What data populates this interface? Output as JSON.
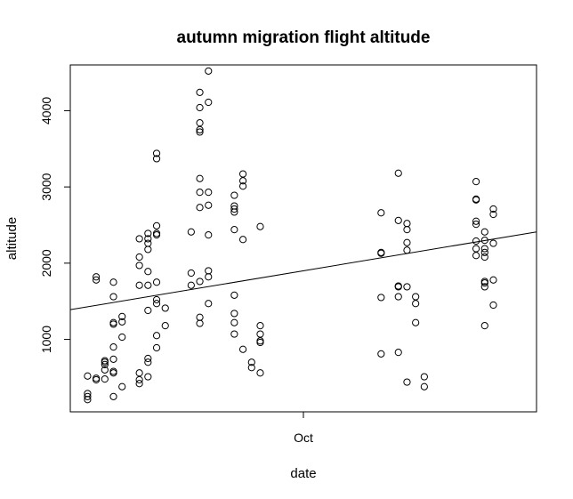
{
  "chart_data": {
    "type": "scatter",
    "title": "autumn migration flight altitude",
    "xlabel": "date",
    "ylabel": "altitude",
    "x_tick_labels": [
      {
        "x": "Oct 1",
        "label": "Oct"
      }
    ],
    "y_ticks": [
      1000,
      2000,
      3000,
      4000
    ],
    "xlim": [
      "Sep 4",
      "Oct 28"
    ],
    "ylim": [
      50,
      4600
    ],
    "grid": false,
    "series": [
      {
        "points": [
          [
            "Sep 6",
            520
          ],
          [
            "Sep 6",
            290
          ],
          [
            "Sep 6",
            250
          ],
          [
            "Sep 6",
            210
          ],
          [
            "Sep 7",
            490
          ],
          [
            "Sep 7",
            470
          ],
          [
            "Sep 7",
            1820
          ],
          [
            "Sep 7",
            1780
          ],
          [
            "Sep 8",
            600
          ],
          [
            "Sep 8",
            670
          ],
          [
            "Sep 8",
            720
          ],
          [
            "Sep 8",
            700
          ],
          [
            "Sep 8",
            480
          ],
          [
            "Sep 9",
            900
          ],
          [
            "Sep 9",
            1220
          ],
          [
            "Sep 9",
            1200
          ],
          [
            "Sep 9",
            1560
          ],
          [
            "Sep 9",
            1750
          ],
          [
            "Sep 9",
            740
          ],
          [
            "Sep 9",
            580
          ],
          [
            "Sep 9",
            560
          ],
          [
            "Sep 9",
            250
          ],
          [
            "Sep 10",
            1300
          ],
          [
            "Sep 10",
            1230
          ],
          [
            "Sep 10",
            1030
          ],
          [
            "Sep 10",
            380
          ],
          [
            "Sep 12",
            560
          ],
          [
            "Sep 12",
            470
          ],
          [
            "Sep 12",
            420
          ],
          [
            "Sep 12",
            1710
          ],
          [
            "Sep 12",
            1970
          ],
          [
            "Sep 12",
            2080
          ],
          [
            "Sep 12",
            2320
          ],
          [
            "Sep 13",
            1890
          ],
          [
            "Sep 13",
            1710
          ],
          [
            "Sep 13",
            1380
          ],
          [
            "Sep 13",
            2180
          ],
          [
            "Sep 13",
            2320
          ],
          [
            "Sep 13",
            2260
          ],
          [
            "Sep 13",
            2390
          ],
          [
            "Sep 13",
            750
          ],
          [
            "Sep 13",
            700
          ],
          [
            "Sep 13",
            510
          ],
          [
            "Sep 14",
            3440
          ],
          [
            "Sep 14",
            3370
          ],
          [
            "Sep 14",
            2490
          ],
          [
            "Sep 14",
            2390
          ],
          [
            "Sep 14",
            2370
          ],
          [
            "Sep 14",
            1750
          ],
          [
            "Sep 14",
            1520
          ],
          [
            "Sep 14",
            1470
          ],
          [
            "Sep 14",
            1050
          ],
          [
            "Sep 14",
            890
          ],
          [
            "Sep 15",
            1410
          ],
          [
            "Sep 15",
            1180
          ],
          [
            "Sep 18",
            2410
          ],
          [
            "Sep 18",
            1870
          ],
          [
            "Sep 18",
            1710
          ],
          [
            "Sep 19",
            4240
          ],
          [
            "Sep 19",
            4040
          ],
          [
            "Sep 19",
            3840
          ],
          [
            "Sep 19",
            3750
          ],
          [
            "Sep 19",
            3720
          ],
          [
            "Sep 19",
            3110
          ],
          [
            "Sep 19",
            2930
          ],
          [
            "Sep 19",
            2730
          ],
          [
            "Sep 19",
            1760
          ],
          [
            "Sep 19",
            1290
          ],
          [
            "Sep 19",
            1210
          ],
          [
            "Sep 20",
            4520
          ],
          [
            "Sep 20",
            4110
          ],
          [
            "Sep 20",
            2930
          ],
          [
            "Sep 20",
            2760
          ],
          [
            "Sep 20",
            2370
          ],
          [
            "Sep 20",
            1900
          ],
          [
            "Sep 20",
            1820
          ],
          [
            "Sep 20",
            1470
          ],
          [
            "Sep 23",
            2890
          ],
          [
            "Sep 23",
            2750
          ],
          [
            "Sep 23",
            2710
          ],
          [
            "Sep 23",
            2670
          ],
          [
            "Sep 23",
            2440
          ],
          [
            "Sep 23",
            1580
          ],
          [
            "Sep 23",
            1340
          ],
          [
            "Sep 23",
            1220
          ],
          [
            "Sep 23",
            1070
          ],
          [
            "Sep 24",
            3170
          ],
          [
            "Sep 24",
            3080
          ],
          [
            "Sep 24",
            3010
          ],
          [
            "Sep 24",
            2310
          ],
          [
            "Sep 24",
            870
          ],
          [
            "Sep 25",
            700
          ],
          [
            "Sep 25",
            630
          ],
          [
            "Sep 26",
            2480
          ],
          [
            "Sep 26",
            1180
          ],
          [
            "Sep 26",
            1070
          ],
          [
            "Sep 26",
            980
          ],
          [
            "Sep 26",
            960
          ],
          [
            "Sep 26",
            560
          ],
          [
            "Oct 10",
            2660
          ],
          [
            "Oct 10",
            2140
          ],
          [
            "Oct 10",
            2130
          ],
          [
            "Oct 10",
            1550
          ],
          [
            "Oct 10",
            810
          ],
          [
            "Oct 12",
            3180
          ],
          [
            "Oct 12",
            2560
          ],
          [
            "Oct 12",
            1700
          ],
          [
            "Oct 12",
            1690
          ],
          [
            "Oct 12",
            1560
          ],
          [
            "Oct 12",
            830
          ],
          [
            "Oct 13",
            2520
          ],
          [
            "Oct 13",
            2440
          ],
          [
            "Oct 13",
            2270
          ],
          [
            "Oct 13",
            2170
          ],
          [
            "Oct 13",
            1690
          ],
          [
            "Oct 13",
            440
          ],
          [
            "Oct 14",
            1560
          ],
          [
            "Oct 14",
            1470
          ],
          [
            "Oct 14",
            1220
          ],
          [
            "Oct 15",
            510
          ],
          [
            "Oct 15",
            380
          ],
          [
            "Oct 21",
            3070
          ],
          [
            "Oct 21",
            2840
          ],
          [
            "Oct 21",
            2830
          ],
          [
            "Oct 21",
            2550
          ],
          [
            "Oct 21",
            2510
          ],
          [
            "Oct 21",
            2290
          ],
          [
            "Oct 21",
            2190
          ],
          [
            "Oct 21",
            2100
          ],
          [
            "Oct 22",
            2410
          ],
          [
            "Oct 22",
            2300
          ],
          [
            "Oct 22",
            2190
          ],
          [
            "Oct 22",
            2140
          ],
          [
            "Oct 22",
            2080
          ],
          [
            "Oct 22",
            1760
          ],
          [
            "Oct 22",
            1740
          ],
          [
            "Oct 22",
            1690
          ],
          [
            "Oct 22",
            1180
          ],
          [
            "Oct 23",
            2710
          ],
          [
            "Oct 23",
            2640
          ],
          [
            "Oct 23",
            2260
          ],
          [
            "Oct 23",
            1780
          ],
          [
            "Oct 23",
            1450
          ]
        ]
      }
    ],
    "trend_line": {
      "from": [
        "Sep 4",
        1390
      ],
      "to": [
        "Oct 28",
        2410
      ]
    }
  }
}
